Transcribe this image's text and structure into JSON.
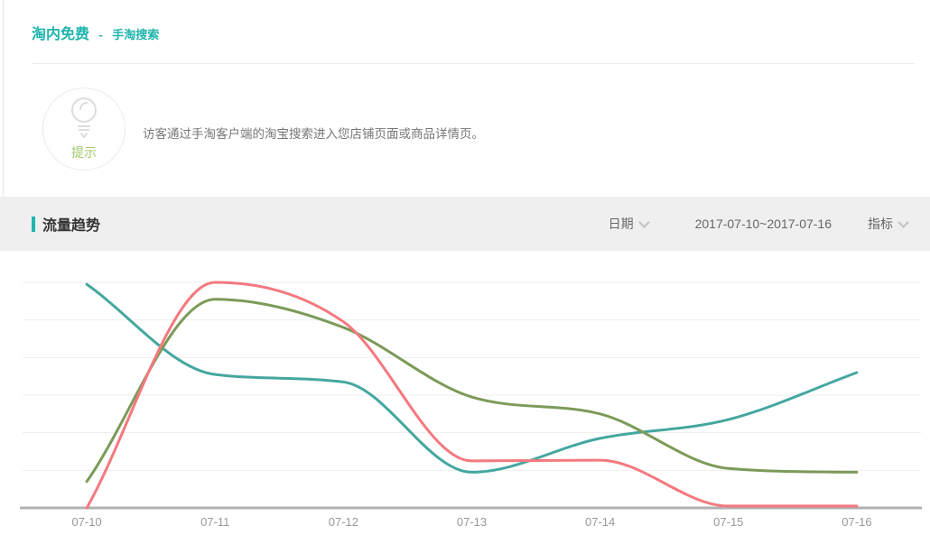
{
  "header": {
    "title": "淘内免费",
    "separator": "-",
    "subtitle": "手淘搜索"
  },
  "tip": {
    "label": "提示",
    "text": "访客通过手淘客户端的淘宝搜索进入您店铺页面或商品详情页。"
  },
  "section": {
    "title": "流量趋势",
    "date_label": "日期",
    "date_range": "2017-07-10~2017-07-16",
    "metric_label": "指标"
  },
  "colors": {
    "accent_teal": "#1fb5ad",
    "tip_green": "#a0c86a",
    "grid_line": "#eeeeee",
    "axis_line": "#b1b1b1",
    "tick_label": "#999999",
    "series_teal": "#44a7a0",
    "series_red": "#f4797f",
    "series_green": "#7c9a59"
  },
  "chart_data": {
    "type": "line",
    "smooth": true,
    "title": "流量趋势",
    "categories": [
      "07-10",
      "07-11",
      "07-12",
      "07-13",
      "07-14",
      "07-15",
      "07-16"
    ],
    "series": [
      {
        "name": "teal",
        "color": "#44a7a0",
        "values": [
          5.95,
          3.55,
          3.35,
          0.95,
          1.85,
          2.35,
          3.6
        ]
      },
      {
        "name": "green",
        "color": "#7c9a59",
        "values": [
          0.7,
          5.55,
          4.8,
          2.95,
          2.5,
          1.05,
          0.95
        ]
      },
      {
        "name": "red",
        "color": "#f4797f",
        "values": [
          0,
          6.0,
          4.95,
          1.25,
          1.27,
          0.05,
          0.05
        ]
      }
    ],
    "xlabel": "",
    "ylabel": "",
    "ylim": [
      0,
      6
    ],
    "y_axis_labels_visible": false,
    "gridlines": "horizontal",
    "legend": "none"
  }
}
